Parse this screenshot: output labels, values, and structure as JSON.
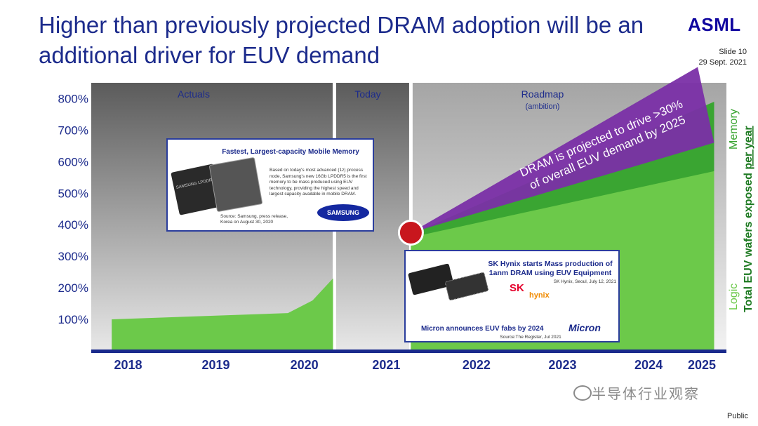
{
  "slide": {
    "title": "Higher than previously projected DRAM adoption will be an additional driver for EUV demand",
    "logo": "ASML",
    "slide_number": "Slide 10",
    "date": "29 Sept. 2021",
    "classification": "Public",
    "watermark": "半导体行业观察"
  },
  "colors": {
    "logic": "#6cc94a",
    "memory": "#3aa532",
    "dram": "#7a2fa6",
    "marker": "#c8161d",
    "axis": "#1a2a8c",
    "text": "#1c2b8c"
  },
  "chart_data": {
    "type": "area",
    "title": "",
    "ylabel": "Total EUV wafers exposed per year",
    "ylabel_parts": [
      "Total EUV wafers exposed ",
      "per year"
    ],
    "xlabel": "",
    "categories": [
      "2018",
      "2019",
      "2020",
      "2021",
      "2022",
      "2023",
      "2024",
      "2025"
    ],
    "yticks": [
      "100%",
      "200%",
      "300%",
      "400%",
      "500%",
      "600%",
      "700%",
      "800%"
    ],
    "ylim": [
      0,
      850
    ],
    "periods": [
      {
        "label": "Actuals",
        "sublabel": ""
      },
      {
        "label": "Today",
        "sublabel": ""
      },
      {
        "label": "Roadmap",
        "sublabel": "(ambition)"
      }
    ],
    "series": [
      {
        "name": "Logic",
        "x": [
          2017.85,
          2020,
          2020.3,
          2020.55,
          2021.5,
          2025.2
        ],
        "values": [
          100,
          120,
          160,
          230,
          360,
          570
        ]
      },
      {
        "name": "Memory",
        "x": [
          2021.5,
          2025.2
        ],
        "values": [
          370,
          790
        ]
      }
    ],
    "projection": {
      "label_lines": [
        "DRAM is projected to drive >30%",
        "of overall EUV demand by 2025"
      ],
      "origin": {
        "x": 2021.5,
        "y": 375
      },
      "upper": {
        "x": 2025.0,
        "y": 900
      },
      "lower": {
        "x": 2025.2,
        "y": 660
      }
    },
    "today_marker": {
      "x": 2021.5,
      "y": 375
    }
  },
  "callouts": {
    "samsung": {
      "title": "Fastest, Largest-capacity Mobile Memory",
      "body": "Based on today's most advanced (1z) process node, Samsung's new 16Gb LPDDR5 is the first memory to be mass produced using EUV technology, providing the highest speed and largest capacity available in mobile DRAM.",
      "source": "Source: Samsung, press release, Korea on August 30, 2020",
      "logo": "SAMSUNG",
      "chip_text": "SAMSUNG LPDDR5"
    },
    "skhynix": {
      "title": "SK Hynix starts Mass production of 1anm DRAM using EUV Equipment",
      "source": "SK Hynix, Seoul, July 12, 2021",
      "logo_sk": "SK",
      "logo_hynix": "hynix",
      "micron_text": "Micron announces EUV fabs by 2024",
      "micron_logo": "Micron",
      "micron_source": "Source:The Register, Jul 2021"
    }
  }
}
